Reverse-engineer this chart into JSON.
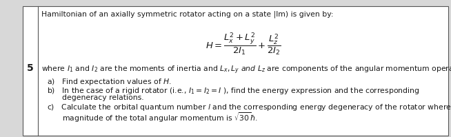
{
  "problem_number": "5",
  "background_color": "#d8d8d8",
  "box_background": "#ffffff",
  "border_color": "#555555",
  "text_color": "#1a1a1a",
  "title_line": "Hamiltonian of an axially symmetric rotator acting on a state |lm) is given by:",
  "equation": "$H = \\dfrac{L_x^2 + L_y^2}{2I_1} + \\dfrac{L_z^2}{2I_2}$",
  "where_line": "where $I_1$ and $I_2$ are the moments of inertia and $L_x, L_y$ $\\mathit{and}$ $L_z$ are components of the angular momentum operator.",
  "part_a": "a)   Find expectation values of $H$.",
  "part_b1": "b)   In the case of a rigid rotator (i.e., $I_1 = I_2 = I$ ), find the energy expression and the corresponding",
  "part_b2": "degeneracy relations.",
  "part_c1": "c)   Calculate the orbital quantum number $l$ and the corresponding energy degeneracy of the rotator where the",
  "part_c2": "magnitude of the total angular momentum is $\\sqrt{30}\\hbar$.",
  "figsize": [
    6.54,
    1.99
  ],
  "dpi": 100
}
